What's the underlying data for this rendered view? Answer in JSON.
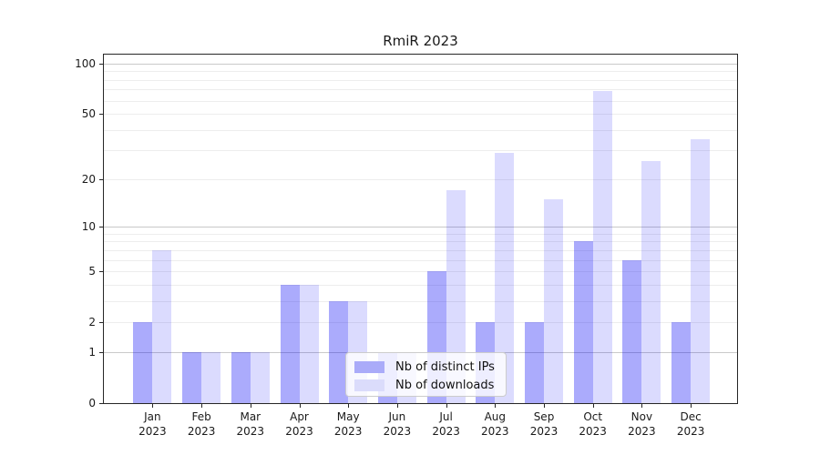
{
  "title": "RmiR 2023",
  "chart_data": {
    "type": "bar",
    "title": "RmiR 2023",
    "xlabel": "",
    "ylabel": "",
    "y_scale": "log1p",
    "ylim": [
      0,
      116
    ],
    "y_ticks": [
      0,
      1,
      2,
      5,
      10,
      20,
      50,
      100
    ],
    "major_gridlines": [
      1,
      10,
      100
    ],
    "minor_gridlines": [
      2,
      3,
      4,
      5,
      6,
      7,
      8,
      9,
      20,
      30,
      40,
      50,
      60,
      70,
      80,
      90
    ],
    "grid": true,
    "legend_position": "lower center",
    "categories": [
      "Jan",
      "Feb",
      "Mar",
      "Apr",
      "May",
      "Jun",
      "Jul",
      "Aug",
      "Sep",
      "Oct",
      "Nov",
      "Dec"
    ],
    "category_year": "2023",
    "series": [
      {
        "name": "Nb of distinct IPs",
        "color": "rgba(0,0,245,0.33)",
        "swatch_color": "#aaabf9",
        "values": [
          2,
          1,
          1,
          4,
          3,
          1,
          5,
          2,
          2,
          8,
          6,
          2
        ]
      },
      {
        "name": "Nb of downloads",
        "color": "rgba(0,0,245,0.14)",
        "swatch_color": "#dbdcfb",
        "values": [
          7,
          1,
          1,
          4,
          3,
          1,
          17,
          29,
          15,
          69,
          26,
          35
        ]
      }
    ]
  },
  "colors": {
    "axis": "#262626",
    "text": "#1a1a1a",
    "major_grid": "#c9c9c9",
    "minor_grid": "#ededed",
    "legend_border": "#cccccc",
    "legend_background": "rgba(255,255,255,0.8)"
  }
}
